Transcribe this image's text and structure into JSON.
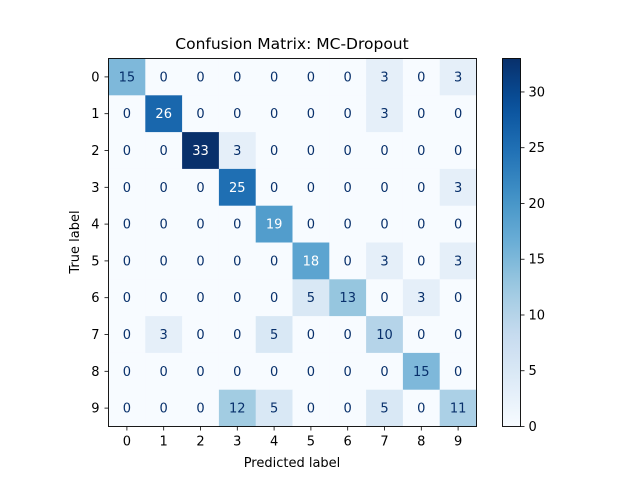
{
  "chart_data": {
    "type": "heatmap",
    "title": "Confusion Matrix: MC-Dropout",
    "xlabel": "Predicted label",
    "ylabel": "True label",
    "x_categories": [
      "0",
      "1",
      "2",
      "3",
      "4",
      "5",
      "6",
      "7",
      "8",
      "9"
    ],
    "y_categories": [
      "0",
      "1",
      "2",
      "3",
      "4",
      "5",
      "6",
      "7",
      "8",
      "9"
    ],
    "matrix": [
      [
        15,
        0,
        0,
        0,
        0,
        0,
        0,
        3,
        0,
        3
      ],
      [
        0,
        26,
        0,
        0,
        0,
        0,
        0,
        3,
        0,
        0
      ],
      [
        0,
        0,
        33,
        3,
        0,
        0,
        0,
        0,
        0,
        0
      ],
      [
        0,
        0,
        0,
        25,
        0,
        0,
        0,
        0,
        0,
        3
      ],
      [
        0,
        0,
        0,
        0,
        19,
        0,
        0,
        0,
        0,
        0
      ],
      [
        0,
        0,
        0,
        0,
        0,
        18,
        0,
        3,
        0,
        3
      ],
      [
        0,
        0,
        0,
        0,
        0,
        5,
        13,
        0,
        3,
        0
      ],
      [
        0,
        3,
        0,
        0,
        5,
        0,
        0,
        10,
        0,
        0
      ],
      [
        0,
        0,
        0,
        0,
        0,
        0,
        0,
        0,
        15,
        0
      ],
      [
        0,
        0,
        0,
        12,
        5,
        0,
        0,
        5,
        0,
        11
      ]
    ],
    "colormap": "Blues",
    "vmin": 0,
    "vmax": 33,
    "colorbar_ticks": [
      0,
      5,
      10,
      15,
      20,
      25,
      30
    ],
    "colorbar_tick_labels": [
      "0",
      "5",
      "10",
      "15",
      "20",
      "25",
      "30"
    ],
    "grid": false
  }
}
